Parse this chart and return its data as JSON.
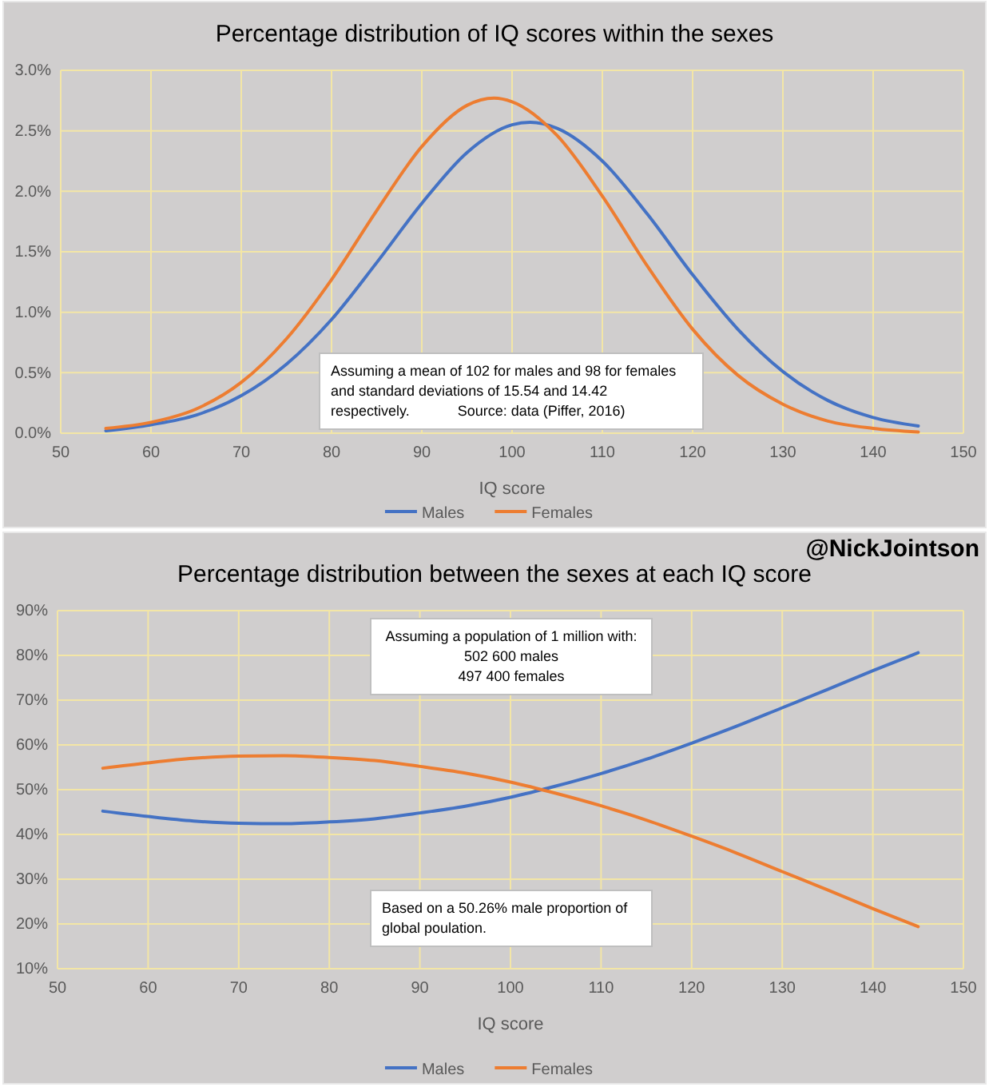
{
  "chart_data": [
    {
      "type": "line",
      "title": "Percentage distribution of IQ scores within the sexes",
      "xlabel": "IQ score",
      "xlim": [
        50,
        150
      ],
      "xticks": [
        50,
        60,
        70,
        80,
        90,
        100,
        110,
        120,
        130,
        140,
        150
      ],
      "ylim": [
        0,
        3
      ],
      "yticks": [
        {
          "value": 0,
          "label": "0.0%"
        },
        {
          "value": 0.5,
          "label": "0.5%"
        },
        {
          "value": 1,
          "label": "1.0%"
        },
        {
          "value": 1.5,
          "label": "1.5%"
        },
        {
          "value": 2,
          "label": "2.0%"
        },
        {
          "value": 2.5,
          "label": "2.5%"
        },
        {
          "value": 3,
          "label": "3.0%"
        }
      ],
      "grid": true,
      "legend": "bottom",
      "marker": "none",
      "line_style": "solid",
      "series": [
        {
          "name": "Males",
          "color": "#4472c4",
          "x": [
            55,
            60,
            65,
            70,
            75,
            80,
            85,
            90,
            95,
            100,
            102,
            105,
            110,
            115,
            120,
            125,
            130,
            135,
            140,
            145
          ],
          "values": [
            0.02,
            0.07,
            0.15,
            0.31,
            0.57,
            0.94,
            1.41,
            1.9,
            2.32,
            2.55,
            2.57,
            2.52,
            2.25,
            1.81,
            1.31,
            0.86,
            0.51,
            0.27,
            0.13,
            0.06
          ]
        },
        {
          "name": "Females",
          "color": "#ed7d31",
          "x": [
            55,
            60,
            65,
            70,
            75,
            80,
            85,
            90,
            95,
            98,
            100,
            105,
            110,
            115,
            120,
            125,
            130,
            135,
            140,
            145
          ],
          "values": [
            0.04,
            0.09,
            0.2,
            0.42,
            0.78,
            1.27,
            1.84,
            2.37,
            2.71,
            2.77,
            2.74,
            2.46,
            1.96,
            1.38,
            0.86,
            0.48,
            0.24,
            0.1,
            0.04,
            0.01
          ]
        }
      ],
      "annotations": [
        "Assuming a mean of 102 for males and 98 for females\nand standard deviations of 15.54 and 14.42\nrespectively.            Source: data (Piffer, 2016)"
      ]
    },
    {
      "type": "line",
      "title": "Percentage distribution between the sexes at each IQ score",
      "xlabel": "IQ score",
      "xlim": [
        50,
        150
      ],
      "xticks": [
        50,
        60,
        70,
        80,
        90,
        100,
        110,
        120,
        130,
        140,
        150
      ],
      "ylim": [
        10,
        90
      ],
      "yticks": [
        {
          "value": 10,
          "label": "10%"
        },
        {
          "value": 20,
          "label": "20%"
        },
        {
          "value": 30,
          "label": "30%"
        },
        {
          "value": 40,
          "label": "40%"
        },
        {
          "value": 50,
          "label": "50%"
        },
        {
          "value": 60,
          "label": "60%"
        },
        {
          "value": 70,
          "label": "70%"
        },
        {
          "value": 80,
          "label": "80%"
        },
        {
          "value": 90,
          "label": "90%"
        }
      ],
      "grid": true,
      "legend": "bottom",
      "marker": "none",
      "line_style": "solid",
      "x": [
        55,
        60,
        65,
        70,
        75,
        80,
        85,
        90,
        95,
        100,
        105,
        110,
        115,
        120,
        125,
        130,
        135,
        140,
        145
      ],
      "series": [
        {
          "name": "Males",
          "color": "#4472c4",
          "values": [
            45.2,
            44,
            43,
            42.5,
            42.4,
            42.8,
            43.5,
            44.8,
            46.3,
            48.3,
            50.8,
            53.6,
            56.8,
            60.4,
            64.2,
            68.3,
            72.4,
            76.6,
            80.6
          ]
        },
        {
          "name": "Females",
          "color": "#ed7d31",
          "values": [
            54.8,
            56,
            57,
            57.5,
            57.6,
            57.2,
            56.5,
            55.2,
            53.7,
            51.7,
            49.2,
            46.4,
            43.2,
            39.6,
            35.8,
            31.7,
            27.6,
            23.4,
            19.4
          ]
        }
      ],
      "annotations": [
        "Assuming a population of 1 million with:\n502 600 males\n497 400 females",
        "Based on a 50.26% male proportion of\nglobal poulation.",
        "@NickJointson"
      ]
    }
  ]
}
